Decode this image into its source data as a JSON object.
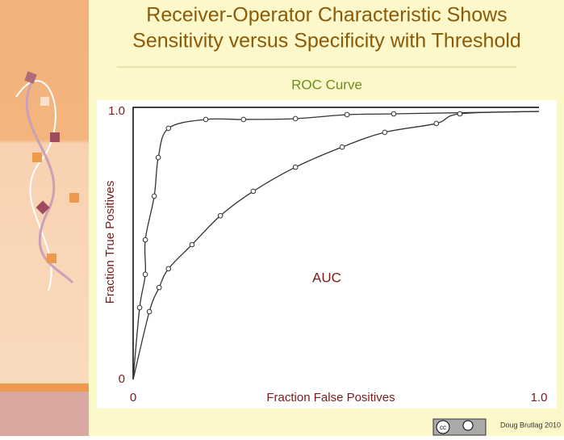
{
  "chart_data": {
    "type": "scatter",
    "title": "Receiver-Operator Characteristic Shows",
    "title_line2": "Sensitivity versus Specificity with Threshold",
    "subtitle": "ROC Curve",
    "x_label": "Fraction False Positives",
    "y_label": "Fraction True Positives",
    "annotation": "AUC",
    "xlim": [
      0,
      1
    ],
    "ylim": [
      0,
      1
    ],
    "xticks": [
      0,
      {
        "value": 1,
        "label": "1.0"
      }
    ],
    "yticks": [
      0,
      {
        "value": 1,
        "label": "1.0"
      }
    ],
    "color": "#333333",
    "series": [
      {
        "x": [
          0.016,
          0.03,
          0.03,
          0.052,
          0.062,
          0.087,
          0.179,
          0.272,
          0.4,
          0.527,
          0.642
        ],
        "values": [
          0.268,
          0.392,
          0.521,
          0.684,
          0.828,
          0.937,
          0.97,
          0.97,
          0.973,
          0.988,
          0.991
        ]
      },
      {
        "x": [
          0.04,
          0.064,
          0.087,
          0.145,
          0.215,
          0.296,
          0.4,
          0.515,
          0.62,
          0.747,
          0.805
        ],
        "values": [
          0.253,
          0.343,
          0.413,
          0.503,
          0.611,
          0.702,
          0.792,
          0.867,
          0.922,
          0.955,
          0.991
        ]
      }
    ]
  },
  "footer": {
    "badge": "cc",
    "credit": "Doug Brutlag 2010"
  }
}
